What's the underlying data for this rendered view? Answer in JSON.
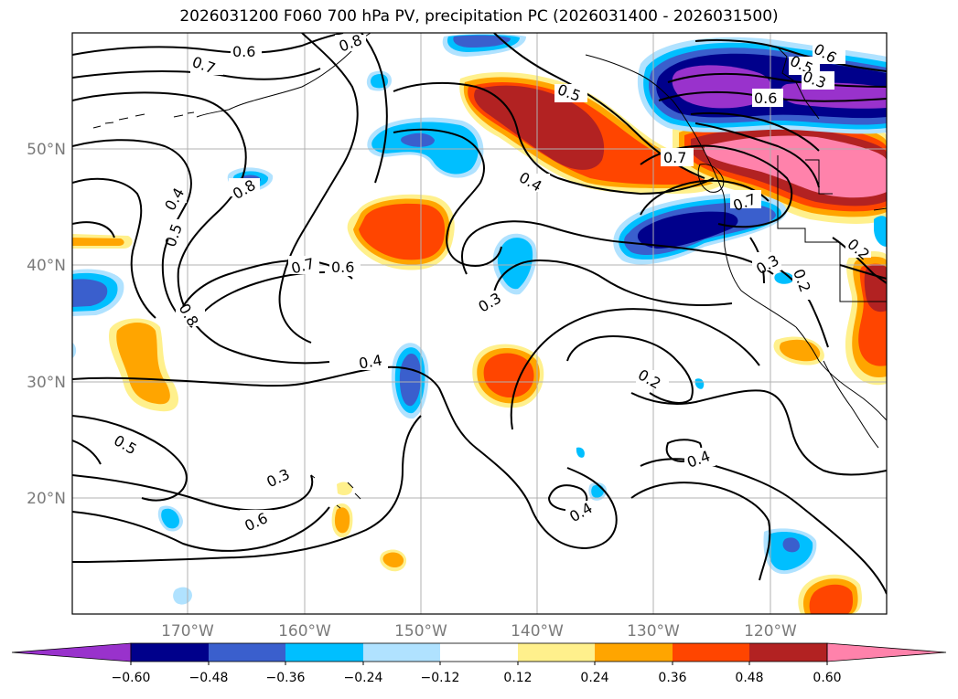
{
  "title": "2026031200 F060 700 hPa PV, precipitation PC (2026031400 - 2026031500)",
  "lat_labels": [
    "50°N",
    "40°N",
    "30°N",
    "20°N"
  ],
  "lon_labels": [
    "170°W",
    "160°W",
    "150°W",
    "140°W",
    "130°W",
    "120°W"
  ],
  "contour_labels": [
    "0.6",
    "0.7",
    "0.8",
    "0.5",
    "0.4",
    "0.8",
    "0.5",
    "0.4",
    "0.7",
    "0.6",
    "0.8",
    "0.3",
    "0.4",
    "0.5",
    "0.3",
    "0.2",
    "0.6",
    "0.7",
    "0.6",
    "0.5",
    "0.3",
    "0.6",
    "0.7",
    "0.3",
    "0.2",
    "0.2",
    "0.4",
    "0.4"
  ],
  "colorbar": {
    "tick_labels": [
      "−0.60",
      "−0.48",
      "−0.36",
      "−0.24",
      "−0.12",
      "0.12",
      "0.24",
      "0.36",
      "0.48",
      "0.60"
    ],
    "colors": [
      "#9932cc",
      "#00008b",
      "#3a5fcd",
      "#00bfff",
      "#b0e2ff",
      "#ffffff",
      "#fff08c",
      "#ffa500",
      "#ff4500",
      "#b22222",
      "#ff82ab"
    ]
  },
  "colors": {
    "grid": "#b0b0b0",
    "contour": "#000000",
    "coast": "#000000"
  }
}
